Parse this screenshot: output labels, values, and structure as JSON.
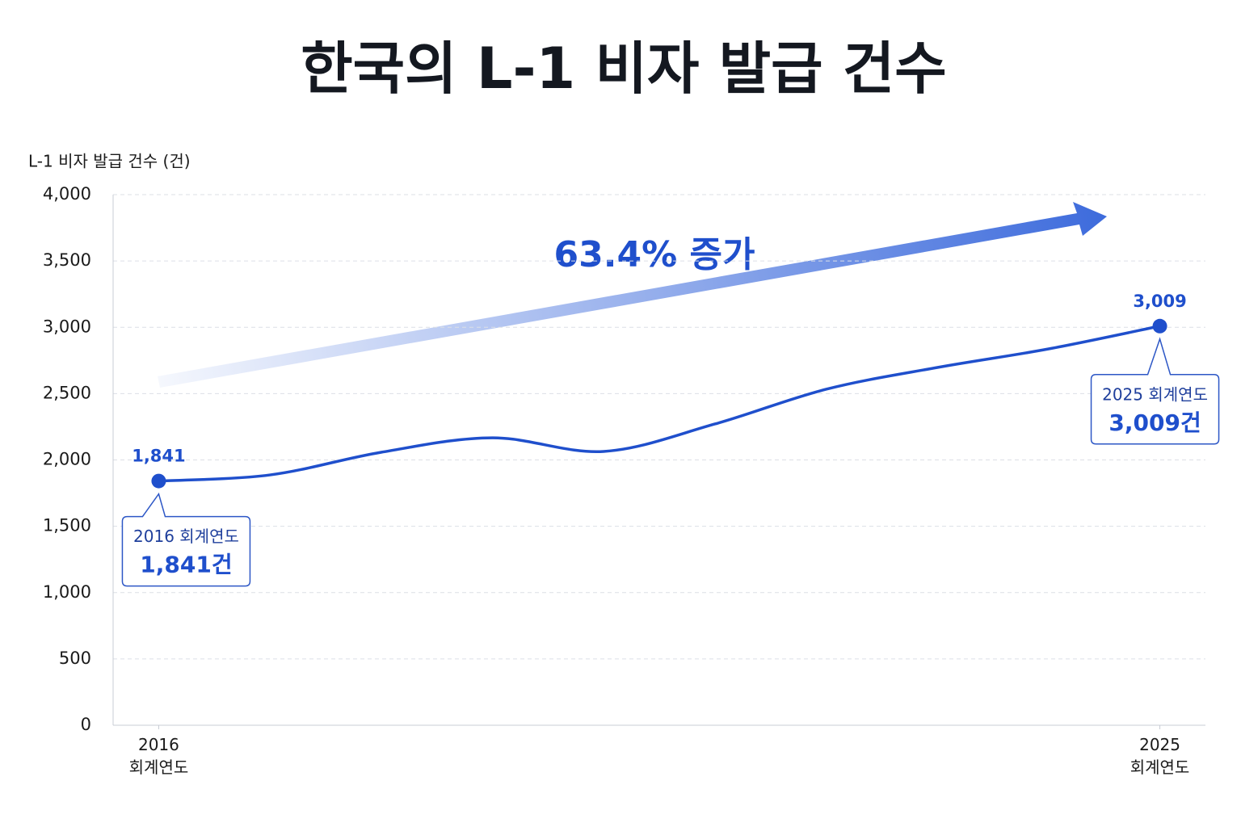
{
  "chart_data": {
    "type": "line",
    "title": "한국의 L-1 비자 발급 건수",
    "y_label": "L-1 비자 발급 건수 (건)",
    "x": [
      2016,
      2017,
      2018,
      2019,
      2020,
      2021,
      2022,
      2023,
      2024,
      2025
    ],
    "series": [
      {
        "name": "L-1 비자 발급 건수",
        "color": "#1f4fcc",
        "values": [
          1841,
          1887,
          2058,
          2167,
          2064,
          2271,
          2533,
          2697,
          2837,
          3009
        ],
        "value_labels": [
          "1,841",
          null,
          null,
          null,
          null,
          null,
          null,
          null,
          null,
          "3,009"
        ]
      }
    ],
    "xlim": [
      2015.59,
      2025.41
    ],
    "xticks": [
      {
        "value": 2016,
        "label": "2016 회계연도"
      },
      {
        "value": 2025,
        "label": "2025 회계연도"
      }
    ],
    "ylim": [
      0,
      4000
    ],
    "yticks": [
      0,
      500,
      {
        "value": 1000,
        "label": "1,000"
      },
      {
        "value": 1500,
        "label": "1,500"
      },
      {
        "value": 2000,
        "label": "2,000"
      },
      {
        "value": 2500,
        "label": "2,500"
      },
      {
        "value": 3000,
        "label": "3,000"
      },
      {
        "value": 3500,
        "label": "3,500"
      },
      {
        "value": 4000,
        "label": "4,000"
      }
    ],
    "grid": true,
    "growth_annotation": "63.4% 증가",
    "callouts": [
      {
        "period": "2016 회계연도",
        "amount": "1,841건"
      },
      {
        "period": "2025 회계연도",
        "amount": "3,009건"
      }
    ]
  }
}
